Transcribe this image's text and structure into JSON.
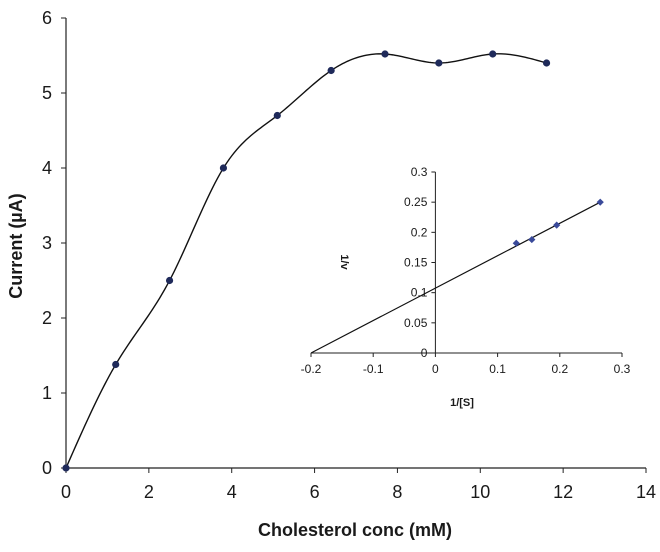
{
  "chart_data": [
    {
      "type": "scatter",
      "title": "",
      "xlabel": "Cholesterol conc (mM)",
      "ylabel": "Current (µA)",
      "xlim": [
        0,
        14
      ],
      "ylim": [
        0,
        6
      ],
      "xticks": [
        "0",
        "2",
        "4",
        "6",
        "8",
        "10",
        "12",
        "14"
      ],
      "yticks": [
        "0",
        "1",
        "2",
        "3",
        "4",
        "5",
        "6"
      ],
      "grid": false,
      "series": [
        {
          "points": [
            {
              "x": 0,
              "y": 0
            },
            {
              "x": 1.2,
              "y": 1.38
            },
            {
              "x": 2.5,
              "y": 2.5
            },
            {
              "x": 3.8,
              "y": 4.0
            },
            {
              "x": 5.1,
              "y": 4.7
            },
            {
              "x": 6.4,
              "y": 5.3
            },
            {
              "x": 7.7,
              "y": 5.52
            },
            {
              "x": 9.0,
              "y": 5.4
            },
            {
              "x": 10.3,
              "y": 5.52
            },
            {
              "x": 11.6,
              "y": 5.4
            }
          ],
          "fit": "smooth curve",
          "marker_color": "#1f2a5a"
        }
      ]
    },
    {
      "type": "scatter",
      "title": "",
      "xlabel": "1/[S]",
      "ylabel": "1/v",
      "xlim": [
        -0.2,
        0.3
      ],
      "ylim": [
        0,
        0.3
      ],
      "xticks": [
        "-0.2",
        "-0.1",
        "0",
        "0.1",
        "0.2",
        "0.3"
      ],
      "yticks": [
        "0",
        "0.05",
        "0.1",
        "0.15",
        "0.2",
        "0.25",
        "0.3"
      ],
      "grid": false,
      "series": [
        {
          "points": [
            {
              "x": 0.13,
              "y": 0.182
            },
            {
              "x": 0.155,
              "y": 0.188
            },
            {
              "x": 0.195,
              "y": 0.212
            },
            {
              "x": 0.265,
              "y": 0.25
            }
          ],
          "fit": "linear",
          "fit_line": {
            "x": [
              -0.2,
              0.265
            ],
            "y": [
              0.0,
              0.25
            ]
          },
          "marker_color": "#3a4a9a"
        }
      ]
    }
  ]
}
